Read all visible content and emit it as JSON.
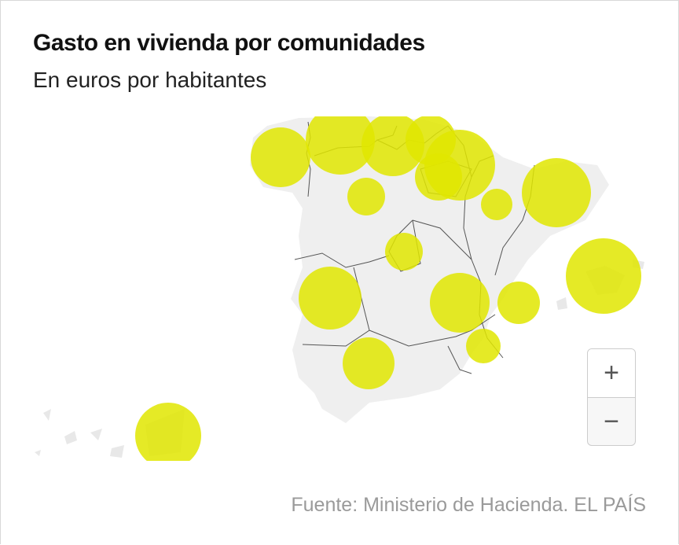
{
  "header": {
    "title": "Gasto en vivienda por comunidades",
    "subtitle": "En euros por habitantes"
  },
  "map": {
    "bubble_color": "#e0e600",
    "land_color": "#efefef",
    "border_color": "#555555"
  },
  "zoom_controls": {
    "zoom_in": "+",
    "zoom_out": "−"
  },
  "footer": {
    "source": "Fuente: Ministerio de Hacienda. EL PAÍS"
  }
}
